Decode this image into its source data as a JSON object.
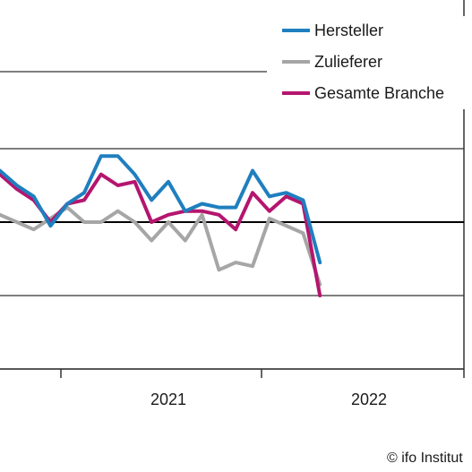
{
  "chart_data": {
    "type": "line",
    "title": "",
    "xlabel": "",
    "ylabel": "",
    "x_tick_labels": [
      "2021",
      "2022"
    ],
    "gridlines": [
      0,
      20,
      40,
      60
    ],
    "zero_line": 40,
    "legend": "top-right",
    "series": [
      {
        "name": "Hersteller",
        "color": "#1f7fbf",
        "values": [
          54,
          50,
          47,
          39,
          45,
          48,
          58,
          58,
          53,
          46,
          51,
          43,
          45,
          44,
          44,
          54,
          47,
          48,
          46,
          29
        ]
      },
      {
        "name": "Zulieferer",
        "color": "#a6a6a6",
        "values": [
          42,
          40,
          38,
          41,
          44,
          40,
          40,
          43,
          40,
          35,
          40,
          35,
          42,
          27,
          29,
          28,
          41,
          39,
          37,
          23
        ]
      },
      {
        "name": "Gesamte Branche",
        "color": "#b5156e",
        "values": [
          53,
          49,
          46,
          40,
          45,
          46,
          53,
          50,
          51,
          40,
          42,
          43,
          43,
          42,
          38,
          48,
          43,
          47,
          45,
          20
        ]
      }
    ]
  },
  "credit": "© ifo Institut"
}
